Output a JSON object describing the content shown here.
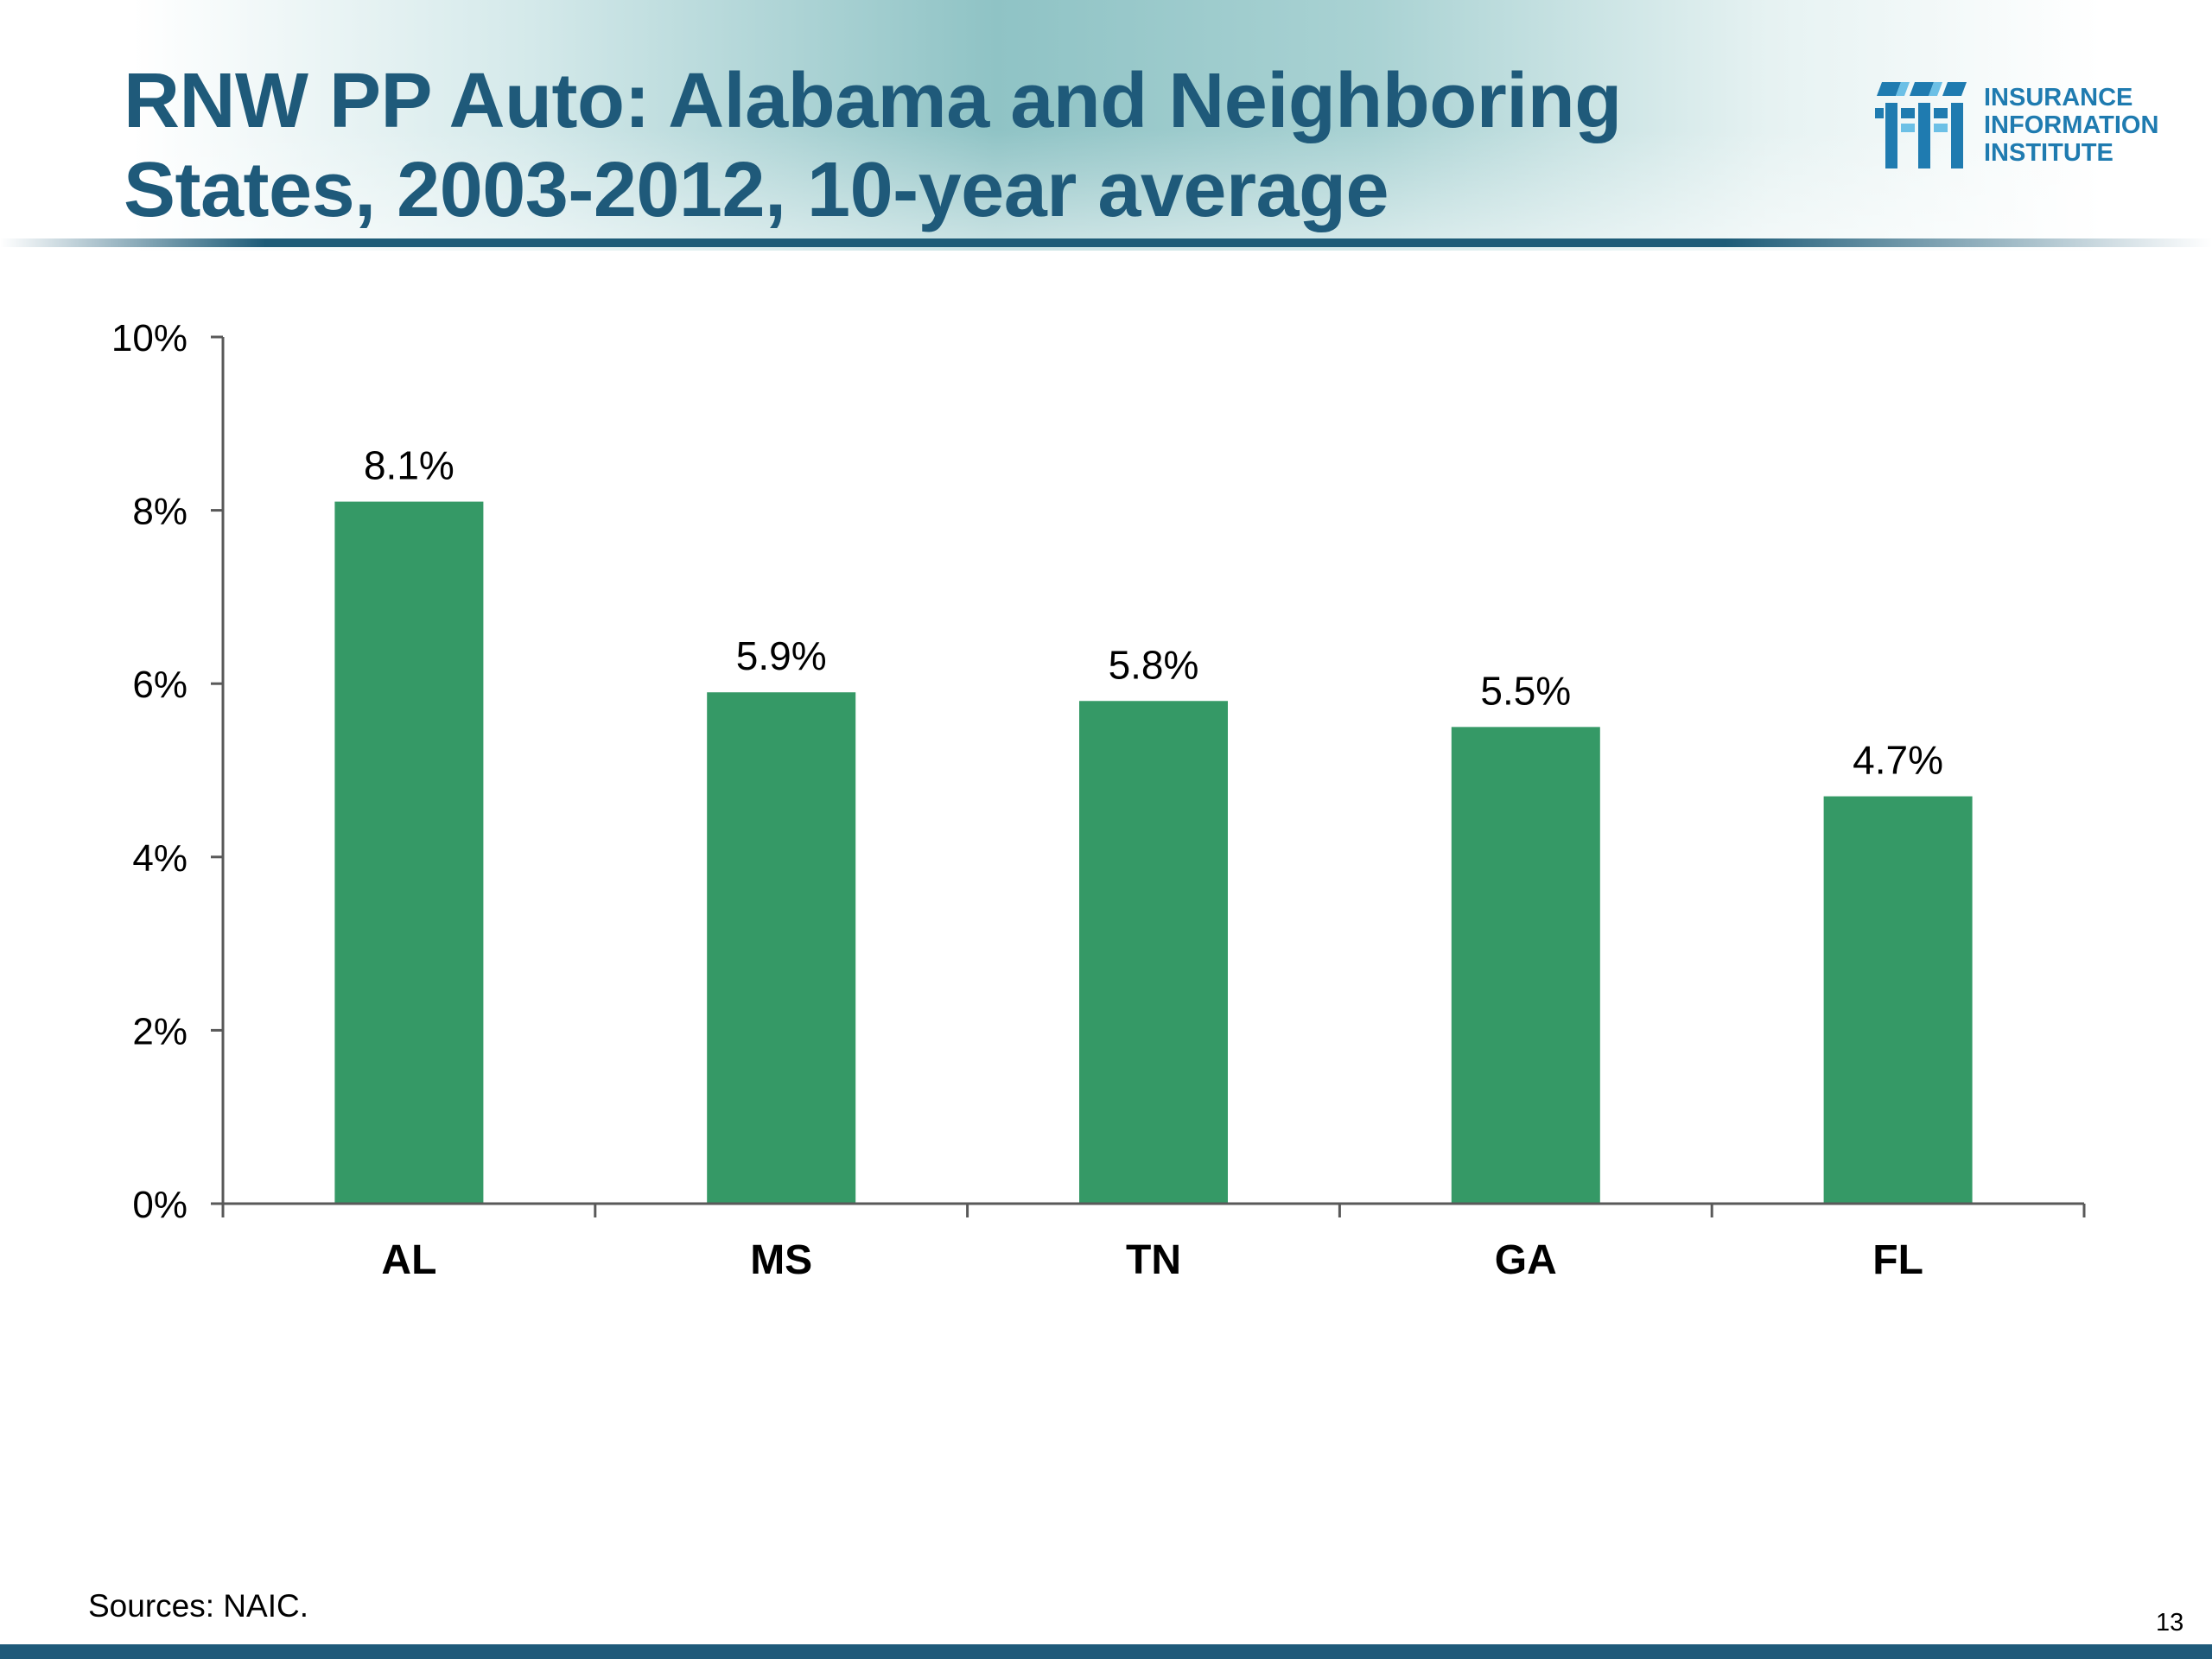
{
  "slide": {
    "title": "RNW PP Auto: Alabama and Neighboring States, 2003-2012, 10-year average",
    "source": "Sources: NAIC.",
    "page_number": "13",
    "logo": {
      "lines": [
        "INSURANCE",
        "INFORMATION",
        "INSTITUTE"
      ],
      "icon": "iii-logo-icon"
    },
    "colors": {
      "title": "#1f5a7a",
      "bar": "#359966",
      "accent": "#1f5a7a"
    }
  },
  "chart_data": {
    "type": "bar",
    "categories": [
      "AL",
      "MS",
      "TN",
      "GA",
      "FL"
    ],
    "values": [
      8.1,
      5.9,
      5.8,
      5.5,
      4.7
    ],
    "data_labels": [
      "8.1%",
      "5.9%",
      "5.8%",
      "5.5%",
      "4.7%"
    ],
    "y_ticks": [
      "0%",
      "2%",
      "4%",
      "6%",
      "8%",
      "10%"
    ],
    "ylim": [
      0,
      10
    ],
    "y_unit": "%",
    "grid": false,
    "legend": "none",
    "title": "",
    "xlabel": "",
    "ylabel": "",
    "bar_color": "#359966"
  }
}
